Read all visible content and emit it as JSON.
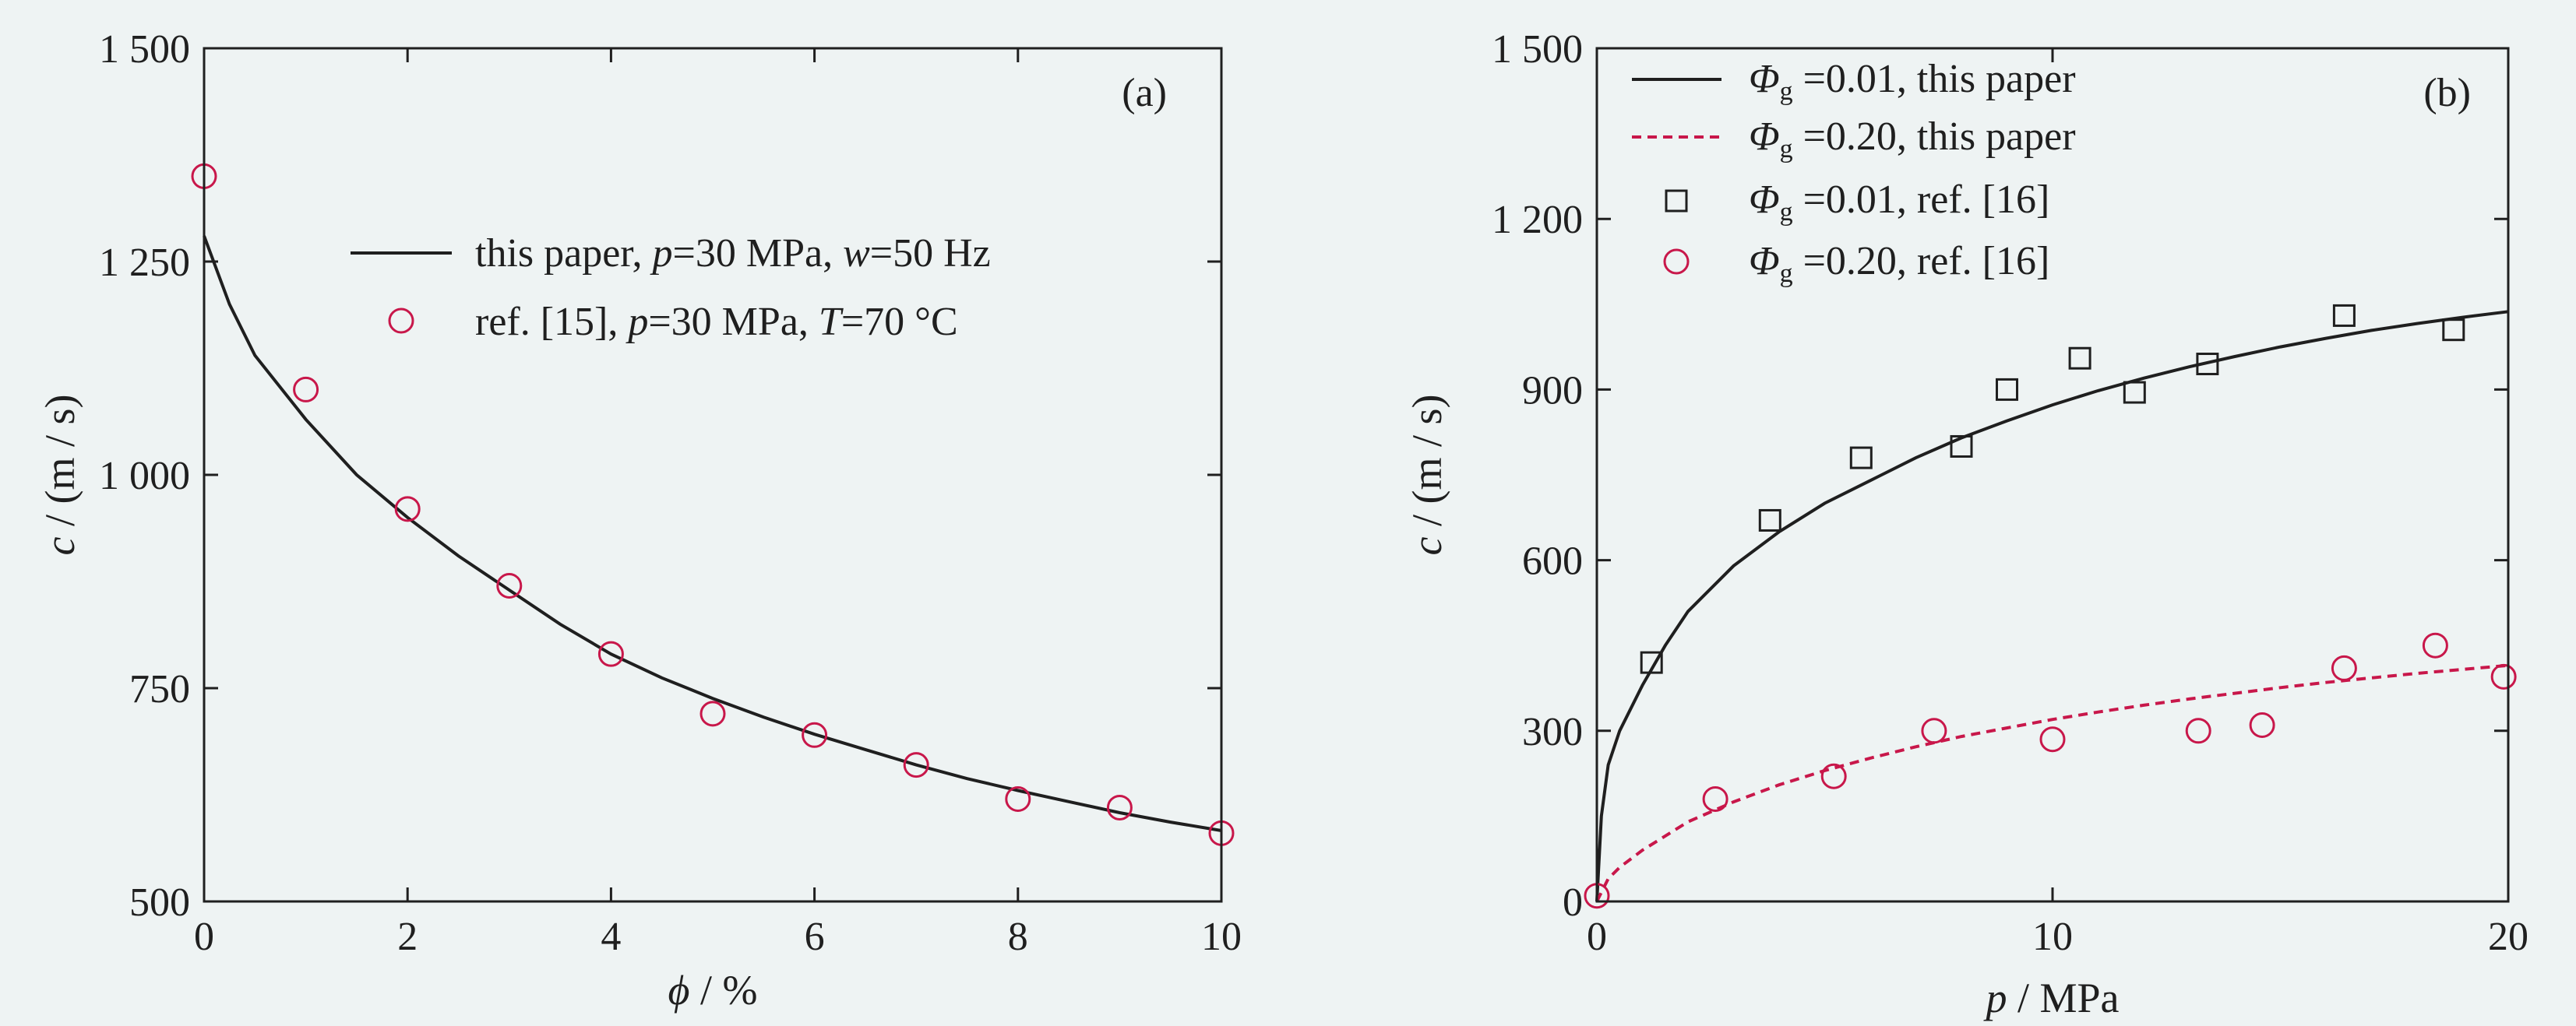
{
  "chart_data": [
    {
      "type": "line",
      "panel": "(a)",
      "xlabel_symbol": "ϕ",
      "xlabel_unit": " / %",
      "ylabel_symbol": "c",
      "ylabel_unit": " / (m / s)",
      "xlim": [
        0,
        10
      ],
      "ylim": [
        500,
        1500
      ],
      "xticks": [
        0,
        2,
        4,
        6,
        8,
        10
      ],
      "xtick_labels": [
        "0",
        "2",
        "4",
        "6",
        "8",
        "10"
      ],
      "yticks": [
        500,
        750,
        1000,
        1250,
        1500
      ],
      "ytick_labels": [
        "500",
        "750",
        "1 000",
        "1 250",
        "1 500"
      ],
      "legend_position": "upper-right",
      "series": [
        {
          "name": "this paper, p=30 MPa, w=50 Hz",
          "legend_parts": [
            "this paper, ",
            "p",
            "=30 MPa, ",
            "w",
            "=50 Hz"
          ],
          "style": "solid-line",
          "color": "#1f1f1f",
          "x": [
            0,
            0.25,
            0.5,
            1,
            1.5,
            2,
            2.5,
            3,
            3.5,
            4,
            4.5,
            5,
            5.5,
            6,
            6.5,
            7,
            7.5,
            8,
            8.5,
            9,
            9.5,
            10
          ],
          "y": [
            1280,
            1200,
            1140,
            1065,
            1000,
            950,
            905,
            865,
            825,
            790,
            762,
            738,
            716,
            696,
            678,
            660,
            644,
            630,
            617,
            604,
            593,
            583
          ]
        },
        {
          "name": "ref. [15], p=30 MPa, T=70 °C",
          "legend_parts": [
            "ref. [15], ",
            "p",
            "=30 MPa, ",
            "T",
            "=70 °C"
          ],
          "style": "open-circle",
          "color": "#c8174a",
          "x": [
            0,
            1,
            2,
            3,
            4,
            5,
            6,
            7,
            8,
            9,
            10
          ],
          "y": [
            1350,
            1100,
            960,
            870,
            790,
            720,
            695,
            660,
            620,
            610,
            580
          ]
        }
      ]
    },
    {
      "type": "line",
      "panel": "(b)",
      "xlabel_symbol": "p",
      "xlabel_unit": " / MPa",
      "ylabel_symbol": "c",
      "ylabel_unit": " / (m / s)",
      "xlim": [
        0,
        20
      ],
      "ylim": [
        0,
        1500
      ],
      "xticks": [
        0,
        10,
        20
      ],
      "xtick_labels": [
        "0",
        "10",
        "20"
      ],
      "yticks": [
        0,
        300,
        600,
        900,
        1200,
        1500
      ],
      "ytick_labels": [
        "0",
        "300",
        "600",
        "900",
        "1 200",
        "1 500"
      ],
      "legend_position": "upper-left",
      "series": [
        {
          "name": "Φg =0.01, this paper",
          "legend_symbol": "Φ",
          "legend_sub": "g",
          "legend_rest": " =0.01, this paper",
          "style": "solid-line",
          "color": "#1f1f1f",
          "x": [
            0,
            0.1,
            0.25,
            0.5,
            1,
            1.5,
            2,
            3,
            4,
            5,
            6,
            7,
            8,
            9,
            10,
            11,
            12,
            13,
            14,
            15,
            16,
            17,
            18,
            19,
            20
          ],
          "y": [
            0,
            150,
            240,
            300,
            380,
            450,
            510,
            590,
            650,
            700,
            740,
            780,
            815,
            845,
            873,
            898,
            920,
            940,
            958,
            975,
            990,
            1004,
            1016,
            1027,
            1037
          ]
        },
        {
          "name": "Φg =0.20, this paper",
          "legend_symbol": "Φ",
          "legend_sub": "g",
          "legend_rest": " =0.20, this paper",
          "style": "dashed-line",
          "color": "#c8174a",
          "x": [
            0,
            0.25,
            0.5,
            1,
            2,
            3,
            4,
            5,
            6,
            7,
            8,
            9,
            10,
            11,
            12,
            13,
            14,
            15,
            16,
            17,
            18,
            19,
            20
          ],
          "y": [
            0,
            40,
            60,
            90,
            140,
            175,
            205,
            230,
            252,
            272,
            290,
            305,
            320,
            333,
            345,
            356,
            366,
            376,
            385,
            393,
            401,
            408,
            415
          ]
        },
        {
          "name": "Φg =0.01, ref. [16]",
          "legend_symbol": "Φ",
          "legend_sub": "g",
          "legend_rest": " =0.01, ref. [16]",
          "style": "open-square",
          "color": "#1f1f1f",
          "x": [
            1.2,
            3.8,
            5.8,
            8.0,
            9.0,
            10.6,
            11.8,
            13.4,
            16.4,
            18.8
          ],
          "y": [
            420,
            670,
            780,
            800,
            900,
            955,
            895,
            945,
            1030,
            1005
          ]
        },
        {
          "name": "Φg =0.20, ref. [16]",
          "legend_symbol": "Φ",
          "legend_sub": "g",
          "legend_rest": " =0.20, ref. [16]",
          "style": "open-circle",
          "color": "#c8174a",
          "x": [
            0,
            2.6,
            5.2,
            7.4,
            10.0,
            13.2,
            14.6,
            16.4,
            18.4,
            19.9
          ],
          "y": [
            10,
            180,
            220,
            300,
            285,
            300,
            310,
            410,
            450,
            395
          ]
        }
      ]
    }
  ]
}
